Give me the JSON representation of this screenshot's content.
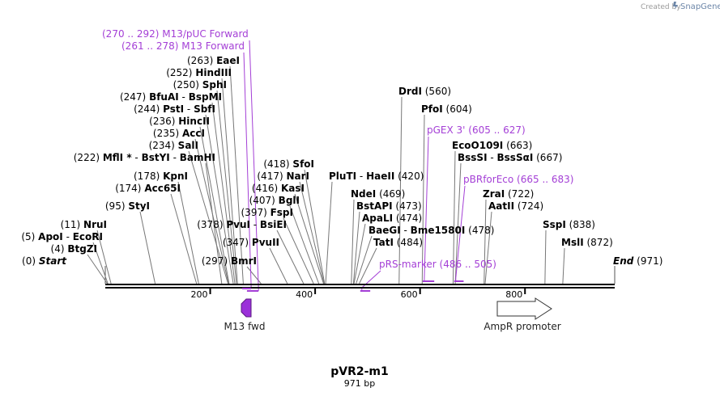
{
  "credit": {
    "created_by": "Created by",
    "brand": "SnapGene"
  },
  "map": {
    "name": "pVR2-m1",
    "length": "971 bp",
    "length_bp": 971
  },
  "ticks": [
    {
      "label": "200",
      "pos": 200
    },
    {
      "label": "400",
      "pos": 400
    },
    {
      "label": "600",
      "pos": 600
    },
    {
      "label": "800",
      "pos": 800
    }
  ],
  "sites": [
    {
      "pre": "(0)",
      "names": [
        "Start"
      ],
      "pos": 0,
      "italic": true
    },
    {
      "pre": "(4)",
      "names": [
        "BtgZI"
      ],
      "pos": 4
    },
    {
      "pre": "(5)",
      "names": [
        "ApoI",
        "EcoRI"
      ],
      "pos": 5
    },
    {
      "pre": "(11)",
      "names": [
        "NruI"
      ],
      "pos": 11
    },
    {
      "pre": "(95)",
      "names": [
        "StyI"
      ],
      "pos": 95
    },
    {
      "pre": "(174)",
      "names": [
        "Acc65I"
      ],
      "pos": 174
    },
    {
      "pre": "(178)",
      "names": [
        "KpnI"
      ],
      "pos": 178
    },
    {
      "pre": "(222)",
      "names": [
        "MflI *",
        "BstYI",
        "BamHI"
      ],
      "pos": 222
    },
    {
      "pre": "(234)",
      "names": [
        "SalI"
      ],
      "pos": 234
    },
    {
      "pre": "(235)",
      "names": [
        "AccI"
      ],
      "pos": 235
    },
    {
      "pre": "(236)",
      "names": [
        "HincII"
      ],
      "pos": 236
    },
    {
      "pre": "(244)",
      "names": [
        "PstI",
        "SbfI"
      ],
      "pos": 244
    },
    {
      "pre": "(247)",
      "names": [
        "BfuAI",
        "BspMI"
      ],
      "pos": 247
    },
    {
      "pre": "(250)",
      "names": [
        "SphI"
      ],
      "pos": 250
    },
    {
      "pre": "(252)",
      "names": [
        "HindIII"
      ],
      "pos": 252
    },
    {
      "pre": "(263)",
      "names": [
        "EaeI"
      ],
      "pos": 263
    },
    {
      "pre": "(297)",
      "names": [
        "BmrI"
      ],
      "pos": 297
    },
    {
      "pre": "(347)",
      "names": [
        "PvuII"
      ],
      "pos": 347
    },
    {
      "pre": "(378)",
      "names": [
        "PvuI",
        "BsiEI"
      ],
      "pos": 378
    },
    {
      "pre": "(397)",
      "names": [
        "FspI"
      ],
      "pos": 397
    },
    {
      "pre": "(407)",
      "names": [
        "BglI"
      ],
      "pos": 407
    },
    {
      "pre": "(416)",
      "names": [
        "KasI"
      ],
      "pos": 416
    },
    {
      "pre": "(417)",
      "names": [
        "NarI"
      ],
      "pos": 417
    },
    {
      "pre": "(418)",
      "names": [
        "SfoI"
      ],
      "pos": 418
    },
    {
      "names": [
        "PluTI",
        "HaeII"
      ],
      "post": "(420)",
      "pos": 420
    },
    {
      "names": [
        "NdeI"
      ],
      "post": "(469)",
      "pos": 469
    },
    {
      "names": [
        "BstAPI"
      ],
      "post": "(473)",
      "pos": 473
    },
    {
      "names": [
        "ApaLI"
      ],
      "post": "(474)",
      "pos": 474
    },
    {
      "names": [
        "BaeGI",
        "Bme1580I"
      ],
      "post": "(478)",
      "pos": 478
    },
    {
      "names": [
        "TatI"
      ],
      "post": "(484)",
      "pos": 484
    },
    {
      "names": [
        "DrdI"
      ],
      "post": "(560)",
      "pos": 560
    },
    {
      "names": [
        "PfoI"
      ],
      "post": "(604)",
      "pos": 604
    },
    {
      "names": [
        "EcoO109I"
      ],
      "post": "(663)",
      "pos": 663
    },
    {
      "names": [
        "BssSI",
        "BssSαI"
      ],
      "post": "(667)",
      "pos": 667
    },
    {
      "names": [
        "ZraI"
      ],
      "post": "(722)",
      "pos": 722
    },
    {
      "names": [
        "AatII"
      ],
      "post": "(724)",
      "pos": 724
    },
    {
      "names": [
        "SspI"
      ],
      "post": "(838)",
      "pos": 838
    },
    {
      "names": [
        "MslI"
      ],
      "post": "(872)",
      "pos": 872
    },
    {
      "names": [
        "End"
      ],
      "post": "(971)",
      "pos": 971,
      "italic": true
    }
  ],
  "primers": [
    {
      "range": "(270 .. 292)",
      "name": "M13/pUC Forward",
      "start": 270,
      "end": 292
    },
    {
      "range": "(261 .. 278)",
      "name": "M13 Forward",
      "start": 261,
      "end": 278
    },
    {
      "name": "pGEX 3'",
      "range": "(605 .. 627)",
      "start": 605,
      "end": 627
    },
    {
      "name": "pBRforEco",
      "range": "(665 .. 683)",
      "start": 665,
      "end": 683
    },
    {
      "name": "pRS-marker",
      "range": "(486 .. 505)",
      "start": 486,
      "end": 505
    }
  ],
  "features": [
    {
      "name": "M13 fwd",
      "start": 261,
      "end": 278,
      "color": "#9b30d9",
      "direction": "forward"
    },
    {
      "name": "AmpR promoter",
      "start": 746,
      "end": 851,
      "color": "#ffffff",
      "direction": "forward"
    }
  ],
  "colors": {
    "primer": "#a43fd6",
    "line": "#444444",
    "backbone": "#000000"
  }
}
